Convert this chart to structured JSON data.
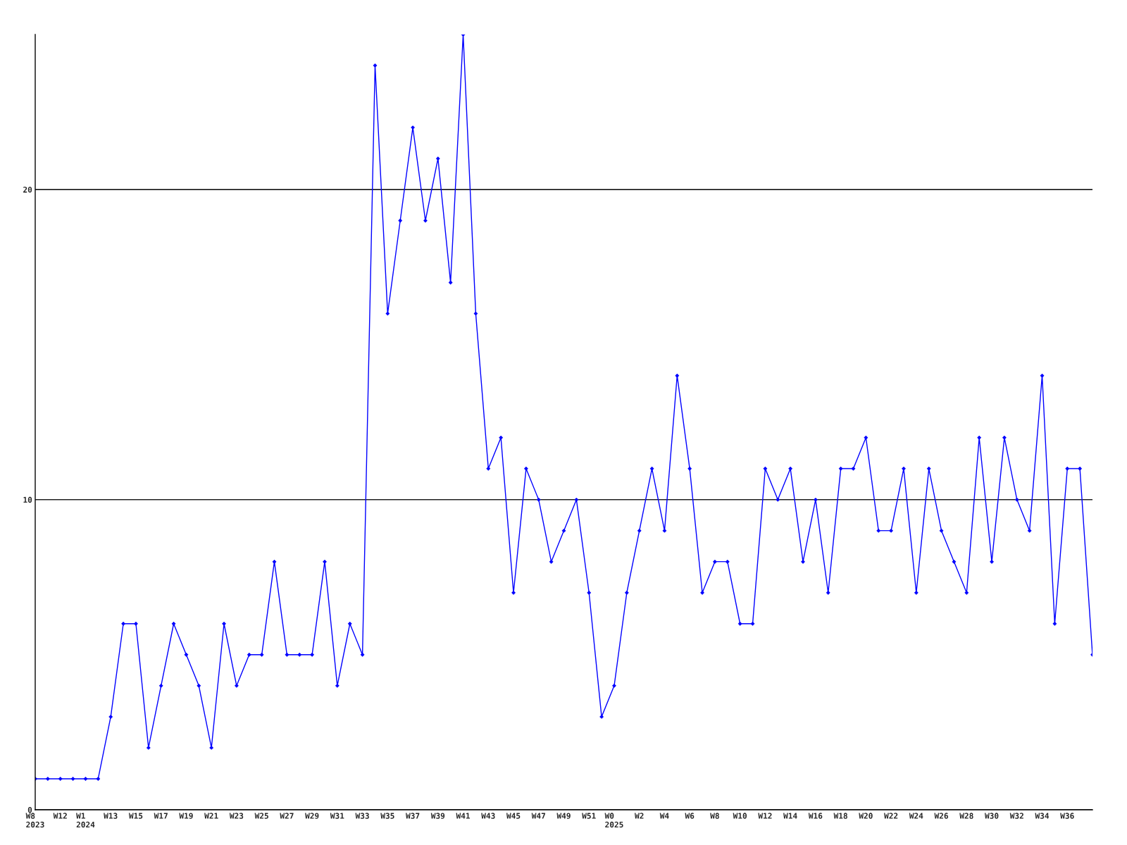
{
  "chart_data": {
    "type": "line",
    "categories": [
      "W8\n2023",
      null,
      "W12",
      null,
      "W1\n2024",
      null,
      "W13",
      null,
      "W15",
      null,
      "W17",
      null,
      "W19",
      null,
      "W21",
      null,
      "W23",
      null,
      "W25",
      null,
      "W27",
      null,
      "W29",
      null,
      "W31",
      null,
      "W33",
      null,
      "W35",
      null,
      "W37",
      null,
      "W39",
      null,
      "W41",
      null,
      "W43",
      null,
      "W45",
      null,
      "W47",
      null,
      "W49",
      null,
      "W51",
      null,
      "W0\n2025",
      null,
      "W2",
      null,
      "W4",
      null,
      "W6",
      null,
      "W8",
      null,
      "W10",
      null,
      "W12",
      null,
      "W14",
      null,
      "W16",
      null,
      "W18",
      null,
      "W20",
      null,
      "W22",
      null,
      "W24",
      null,
      "W26",
      null,
      "W28",
      null,
      "W30",
      null,
      "W32",
      null,
      "W34",
      null,
      "W36",
      null,
      null
    ],
    "series": [
      {
        "color": "#0000ff",
        "values": [
          1,
          1,
          1,
          1,
          1,
          1,
          3,
          6,
          6,
          2,
          4,
          6,
          5,
          4,
          2,
          6,
          4,
          5,
          5,
          8,
          5,
          5,
          5,
          8,
          4,
          6,
          5,
          24,
          16,
          19,
          22,
          19,
          21,
          17,
          25,
          16,
          11,
          12,
          7,
          11,
          10,
          8,
          9,
          10,
          7,
          3,
          4,
          7,
          9,
          11,
          9,
          14,
          11,
          7,
          8,
          8,
          6,
          6,
          11,
          10,
          11,
          8,
          10,
          7,
          11,
          11,
          12,
          9,
          9,
          11,
          7,
          11,
          9,
          8,
          7,
          12,
          8,
          12,
          10,
          9,
          14,
          6,
          11,
          11,
          5
        ]
      }
    ],
    "ylim": [
      0,
      25
    ],
    "yticks": [
      0,
      10,
      20
    ],
    "grid": "y",
    "marker": "diamond",
    "line_style": "solid"
  }
}
